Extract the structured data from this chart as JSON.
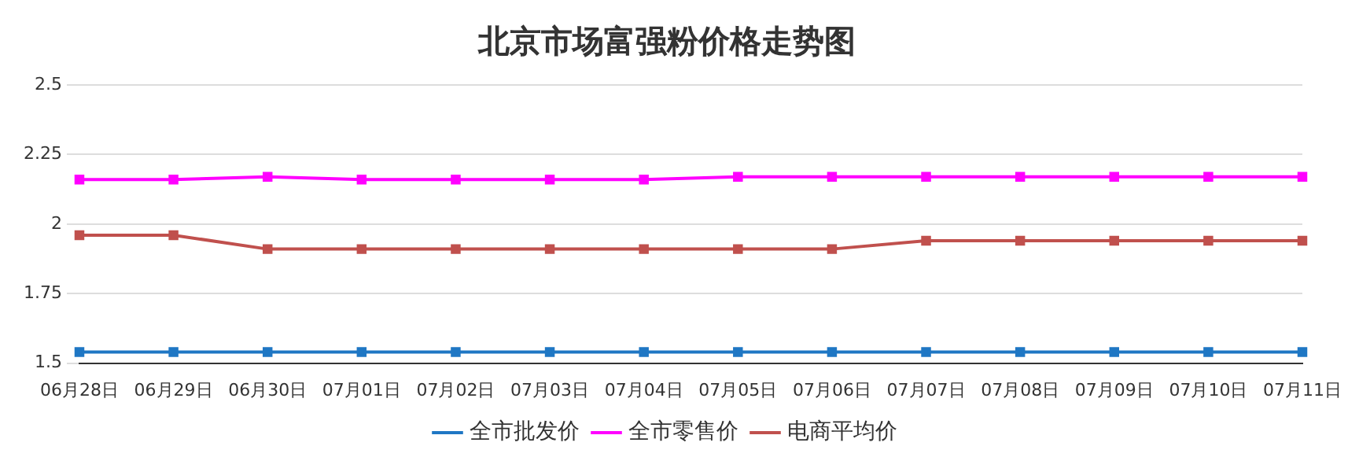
{
  "chart_data": {
    "type": "line",
    "title": "北京市场富强粉价格走势图",
    "categories": [
      "06月28日",
      "06月29日",
      "06月30日",
      "07月01日",
      "07月02日",
      "07月03日",
      "07月04日",
      "07月05日",
      "07月06日",
      "07月07日",
      "07月08日",
      "07月09日",
      "07月10日",
      "07月11日"
    ],
    "series": [
      {
        "name": "全市批发价",
        "color": "#1f77c4",
        "values": [
          1.54,
          1.54,
          1.54,
          1.54,
          1.54,
          1.54,
          1.54,
          1.54,
          1.54,
          1.54,
          1.54,
          1.54,
          1.54,
          1.54
        ]
      },
      {
        "name": "全市零售价",
        "color": "#ff00ff",
        "values": [
          2.16,
          2.16,
          2.17,
          2.16,
          2.16,
          2.16,
          2.16,
          2.17,
          2.17,
          2.17,
          2.17,
          2.17,
          2.17,
          2.17
        ]
      },
      {
        "name": "电商平均价",
        "color": "#c0504d",
        "values": [
          1.96,
          1.96,
          1.91,
          1.91,
          1.91,
          1.91,
          1.91,
          1.91,
          1.91,
          1.94,
          1.94,
          1.94,
          1.94,
          1.94
        ]
      }
    ],
    "ylim": [
      1.5,
      2.5
    ],
    "yticks": [
      1.5,
      1.75,
      2,
      2.25,
      2.5
    ],
    "grid": "y",
    "legend": "bottom",
    "marker": "square",
    "line_style": "solid"
  }
}
